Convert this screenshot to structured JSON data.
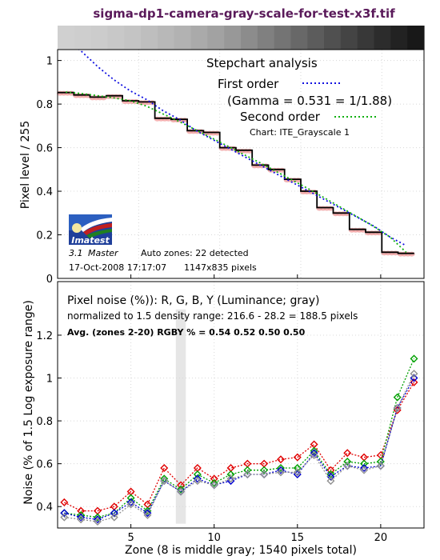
{
  "page_title": "sigma-dp1-camera-gray-scale-for-test-x3f.tif",
  "colors": {
    "title": "#5a1a5a",
    "first_order": "#1010e0",
    "second_order": "#10b010",
    "measured": "#000000",
    "marker_light": "#f0a0a0",
    "noise_r": "#e00000",
    "noise_g": "#00a000",
    "noise_b": "#0000d0",
    "noise_y": "#909090",
    "middle_gray_band": "#e6e6e6"
  },
  "strip": {
    "gray_levels": [
      208,
      206,
      204,
      200,
      196,
      190,
      184,
      178,
      170,
      162,
      152,
      140,
      128,
      116,
      104,
      92,
      80,
      68,
      56,
      44,
      34,
      24
    ]
  },
  "logo": {
    "text": "Imatest"
  },
  "chart_data": [
    {
      "type": "line",
      "title": "Stepchart analysis",
      "ylabel": "Pixel level / 255",
      "xlim": [
        0,
        22.6
      ],
      "ylim": [
        0,
        1.05
      ],
      "y_ticks": [
        0,
        0.2,
        0.4,
        0.6,
        0.8,
        1
      ],
      "y_tick_labels": [
        "0",
        "0.2",
        "0.4",
        "0.6",
        "0.8",
        "1"
      ],
      "grid": true,
      "legend_placement": "top-right",
      "legend": {
        "first_order": "First order",
        "gamma_text": "(Gamma = 0.531 = 1/1.88)",
        "second_order": "Second order",
        "chart_name": "Chart: ITE_Grayscale 1"
      },
      "info": {
        "version": "3.1",
        "edition": "Master",
        "auto_zones": "Auto zones:  22 detected",
        "date": "17-Oct-2008 17:17:07",
        "pixels": "1147x835 pixels"
      },
      "zones": [
        1,
        2,
        3,
        4,
        5,
        6,
        7,
        8,
        9,
        10,
        11,
        12,
        13,
        14,
        15,
        16,
        17,
        18,
        19,
        20,
        21,
        22
      ],
      "measured_levels": [
        0.853,
        0.842,
        0.832,
        0.838,
        0.815,
        0.81,
        0.735,
        0.73,
        0.678,
        0.67,
        0.6,
        0.588,
        0.52,
        0.5,
        0.455,
        0.4,
        0.325,
        0.3,
        0.225,
        0.212,
        0.12,
        0.115
      ],
      "first_order_fit": [
        1.1,
        1.04,
        0.97,
        0.91,
        0.86,
        0.82,
        0.77,
        0.73,
        0.68,
        0.64,
        0.6,
        0.56,
        0.52,
        0.48,
        0.44,
        0.4,
        0.36,
        0.32,
        0.28,
        0.24,
        0.19,
        0.15
      ],
      "second_order_fit": [
        0.855,
        0.848,
        0.838,
        0.828,
        0.815,
        0.79,
        0.755,
        0.72,
        0.682,
        0.645,
        0.607,
        0.568,
        0.53,
        0.49,
        0.45,
        0.41,
        0.368,
        0.325,
        0.282,
        0.238,
        0.19,
        0.12
      ]
    },
    {
      "type": "line",
      "title": "Pixel noise (%)): R, G, B, Y (Luminance; gray)",
      "subtitle": "normalized to 1.5 density range: 216.6 - 28.2 = 188.5 pixels",
      "avg_label": "Avg. (zones 2-20) RGBY %  = 0.54  0.52  0.50  0.50",
      "xlabel": "Zone  (8 is middle gray;  1540 pixels total)",
      "ylabel": "Noise (% of 1.5 Log exposure range)",
      "xlim": [
        0.6,
        22.6
      ],
      "ylim": [
        0.3,
        1.45
      ],
      "x_ticks": [
        5,
        10,
        15,
        20
      ],
      "x_tick_labels": [
        "5",
        "10",
        "15",
        "20"
      ],
      "y_ticks": [
        0.4,
        0.6,
        0.8,
        1,
        1.2
      ],
      "y_tick_labels": [
        "0.4",
        "0.6",
        "0.8",
        "1",
        "1.2"
      ],
      "grid": true,
      "middle_gray_zone": 8,
      "x": [
        1,
        2,
        3,
        4,
        5,
        6,
        7,
        8,
        9,
        10,
        11,
        12,
        13,
        14,
        15,
        16,
        17,
        18,
        19,
        20,
        21,
        22
      ],
      "series": [
        {
          "key": "R",
          "values": [
            0.42,
            0.38,
            0.38,
            0.4,
            0.47,
            0.41,
            0.58,
            0.5,
            0.58,
            0.53,
            0.58,
            0.6,
            0.6,
            0.62,
            0.63,
            0.69,
            0.57,
            0.65,
            0.63,
            0.64,
            0.85,
            0.98
          ]
        },
        {
          "key": "G",
          "values": [
            0.37,
            0.36,
            0.35,
            0.37,
            0.44,
            0.38,
            0.53,
            0.48,
            0.55,
            0.51,
            0.55,
            0.57,
            0.57,
            0.58,
            0.58,
            0.66,
            0.55,
            0.61,
            0.6,
            0.61,
            0.91,
            1.09
          ]
        },
        {
          "key": "B",
          "values": [
            0.37,
            0.35,
            0.34,
            0.37,
            0.42,
            0.37,
            0.52,
            0.47,
            0.53,
            0.5,
            0.52,
            0.55,
            0.55,
            0.57,
            0.55,
            0.65,
            0.54,
            0.59,
            0.58,
            0.59,
            0.86,
            1.0
          ]
        },
        {
          "key": "Y",
          "values": [
            0.35,
            0.34,
            0.33,
            0.35,
            0.41,
            0.36,
            0.52,
            0.47,
            0.52,
            0.5,
            0.53,
            0.55,
            0.55,
            0.56,
            0.56,
            0.64,
            0.52,
            0.59,
            0.57,
            0.59,
            0.86,
            1.02
          ]
        }
      ]
    }
  ]
}
